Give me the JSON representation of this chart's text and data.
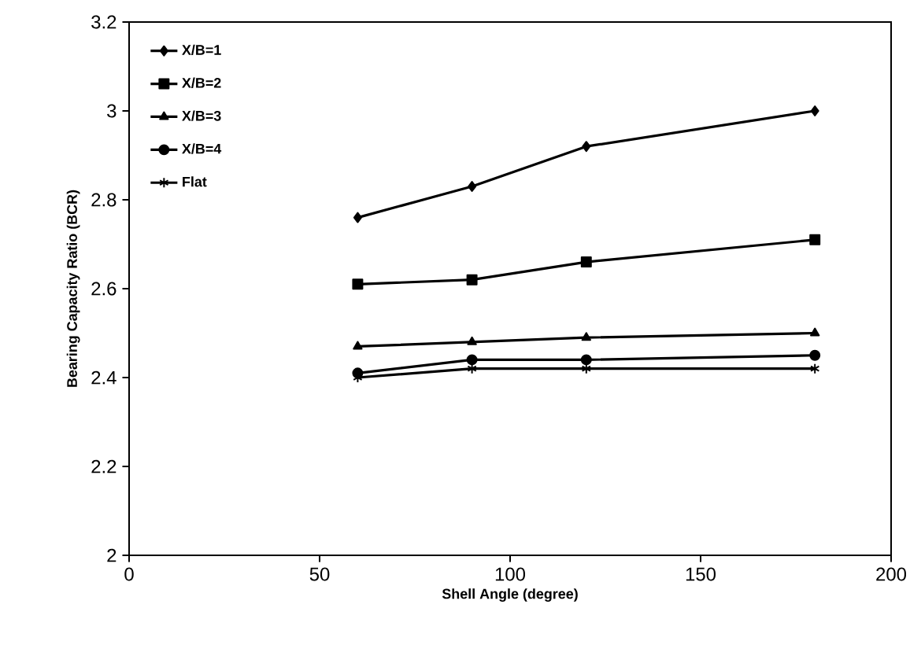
{
  "chart_data": {
    "type": "line",
    "xlabel": "Shell Angle (degree)",
    "ylabel": "Bearing Capacity Ratio (BCR)",
    "x": [
      60,
      90,
      120,
      180
    ],
    "series": [
      {
        "name": "X/B=1",
        "color": "#000000",
        "marker": "diamond",
        "values": [
          2.76,
          2.83,
          2.92,
          3.0
        ]
      },
      {
        "name": "X/B=2",
        "color": "#000000",
        "marker": "square",
        "values": [
          2.61,
          2.62,
          2.66,
          2.71
        ]
      },
      {
        "name": "X/B=3",
        "color": "#000000",
        "marker": "triangle",
        "values": [
          2.47,
          2.48,
          2.49,
          2.5
        ]
      },
      {
        "name": "X/B=4",
        "color": "#000000",
        "marker": "circle",
        "values": [
          2.41,
          2.44,
          2.44,
          2.45
        ]
      },
      {
        "name": "Flat",
        "color": "#000000",
        "marker": "cross",
        "values": [
          2.4,
          2.42,
          2.42,
          2.42
        ]
      }
    ],
    "xlim": [
      0,
      200
    ],
    "xticks": [
      0,
      50,
      100,
      150,
      200
    ],
    "ylim": [
      2,
      3.2
    ],
    "yticks": [
      2,
      2.2,
      2.4,
      2.6,
      2.8,
      3,
      3.2
    ],
    "grid": false,
    "legend": "top left",
    "line_style": "solid"
  }
}
